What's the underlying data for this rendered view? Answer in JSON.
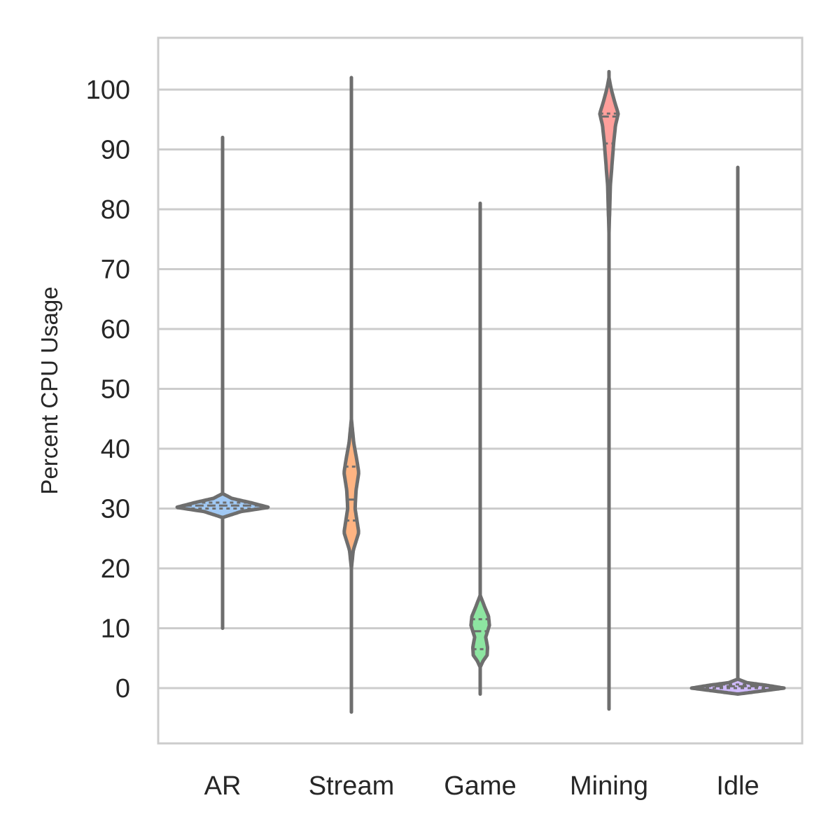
{
  "chart_data": {
    "type": "violin",
    "title": "",
    "xlabel": "",
    "ylabel": "Percent CPU Usage",
    "ylim": [
      -9,
      108.5
    ],
    "yticks": [
      0,
      10,
      20,
      30,
      40,
      50,
      60,
      70,
      80,
      90,
      100
    ],
    "grid": "horizontal",
    "legend": "none",
    "colors": {
      "outline": "#6e6e6e",
      "grid": "#cccccc",
      "frame": "#cccccc"
    },
    "categories": [
      "AR",
      "Stream",
      "Game",
      "Mining",
      "Idle"
    ],
    "series": [
      {
        "category": "AR",
        "fill": "#a1c9f4",
        "min": 10,
        "max": 92,
        "quartiles": [
          30,
          30.5,
          31
        ],
        "density": [
          [
            28.5,
            0
          ],
          [
            29.5,
            0.4
          ],
          [
            30.2,
            1.0
          ],
          [
            31,
            0.6
          ],
          [
            31.7,
            0.2
          ],
          [
            32.5,
            0
          ]
        ]
      },
      {
        "category": "Stream",
        "fill": "#ffb482",
        "min": -4,
        "max": 102,
        "quartiles": [
          28,
          31.5,
          37
        ],
        "density": [
          [
            20,
            0
          ],
          [
            23,
            0.04
          ],
          [
            26,
            0.16
          ],
          [
            28,
            0.12
          ],
          [
            30,
            0.08
          ],
          [
            33,
            0.1
          ],
          [
            36,
            0.16
          ],
          [
            38,
            0.12
          ],
          [
            41,
            0.05
          ],
          [
            45,
            0
          ]
        ]
      },
      {
        "category": "Game",
        "fill": "#8de5a1",
        "min": -1,
        "max": 81,
        "quartiles": [
          6.5,
          9.5,
          11.5
        ],
        "density": [
          [
            3.5,
            0
          ],
          [
            4.5,
            0.06
          ],
          [
            5.5,
            0.15
          ],
          [
            6.8,
            0.16
          ],
          [
            8.5,
            0.12
          ],
          [
            10.5,
            0.2
          ],
          [
            12,
            0.18
          ],
          [
            13.5,
            0.1
          ],
          [
            15.5,
            0
          ]
        ]
      },
      {
        "category": "Mining",
        "fill": "#ff9f9b",
        "min": -3.5,
        "max": 103,
        "quartiles": [
          91,
          95.5,
          96
        ],
        "density": [
          [
            76,
            0
          ],
          [
            84,
            0.03
          ],
          [
            88,
            0.07
          ],
          [
            91,
            0.1
          ],
          [
            94,
            0.14
          ],
          [
            96,
            0.2
          ],
          [
            98,
            0.12
          ],
          [
            100,
            0.05
          ],
          [
            102,
            0
          ]
        ]
      },
      {
        "category": "Idle",
        "fill": "#d0bbff",
        "min": 0,
        "max": 87,
        "quartiles": [
          0,
          0.3,
          0.6
        ],
        "density": [
          [
            -1,
            0
          ],
          [
            -0.6,
            0.4
          ],
          [
            0,
            1.0
          ],
          [
            0.5,
            0.6
          ],
          [
            0.9,
            0.2
          ],
          [
            1.5,
            0
          ]
        ]
      }
    ]
  }
}
